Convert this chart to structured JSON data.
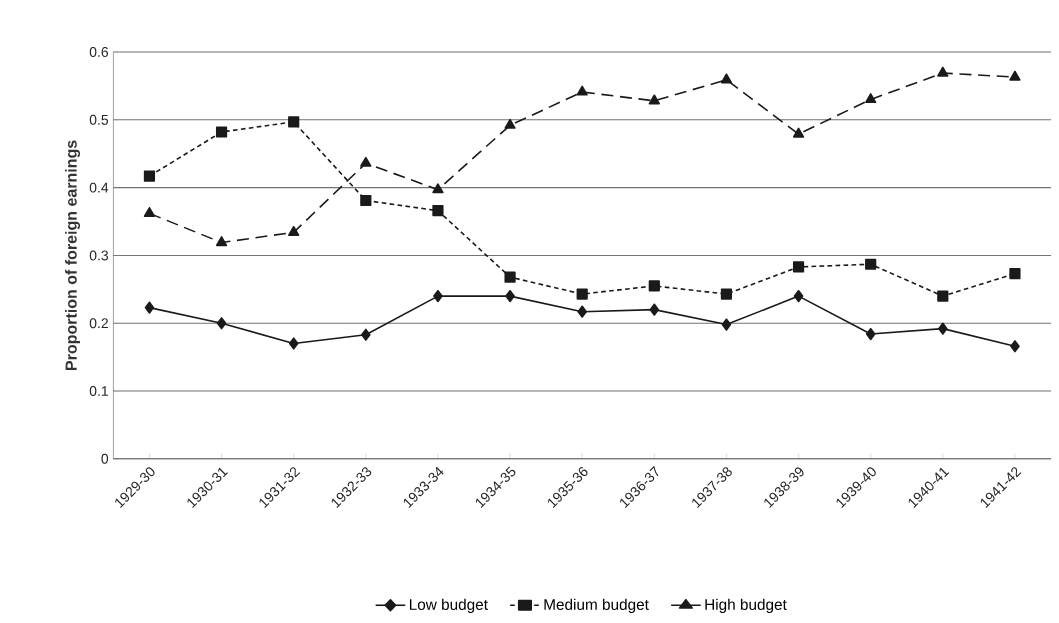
{
  "chart_data": {
    "type": "line",
    "ylabel": "Proportion of foreign earnings",
    "categories": [
      "1929-30",
      "1930-31",
      "1931-32",
      "1932-33",
      "1933-34",
      "1934-35",
      "1935-36",
      "1936-37",
      "1937-38",
      "1938-39",
      "1939-40",
      "1940-41",
      "1941-42"
    ],
    "series": [
      {
        "name": "Low budget",
        "color": "#1a1a1a",
        "marker": "diamond",
        "line_style": "solid",
        "values": [
          0.223,
          0.2,
          0.17,
          0.183,
          0.24,
          0.24,
          0.217,
          0.22,
          0.198,
          0.24,
          0.184,
          0.192,
          0.166
        ]
      },
      {
        "name": "Medium budget",
        "color": "#1a1a1a",
        "marker": "square",
        "line_style": "dotted",
        "values": [
          0.417,
          0.482,
          0.497,
          0.381,
          0.366,
          0.268,
          0.243,
          0.255,
          0.243,
          0.283,
          0.287,
          0.24,
          0.273
        ]
      },
      {
        "name": "High budget",
        "color": "#1a1a1a",
        "marker": "triangle",
        "line_style": "dashed",
        "values": [
          0.362,
          0.319,
          0.334,
          0.436,
          0.397,
          0.492,
          0.541,
          0.528,
          0.559,
          0.479,
          0.53,
          0.569,
          0.563
        ]
      }
    ],
    "ylim": [
      0,
      0.6
    ],
    "yticks": [
      0,
      0.1,
      0.2,
      0.3,
      0.4,
      0.5,
      0.6
    ],
    "grid": "y",
    "legend": "bottom"
  }
}
